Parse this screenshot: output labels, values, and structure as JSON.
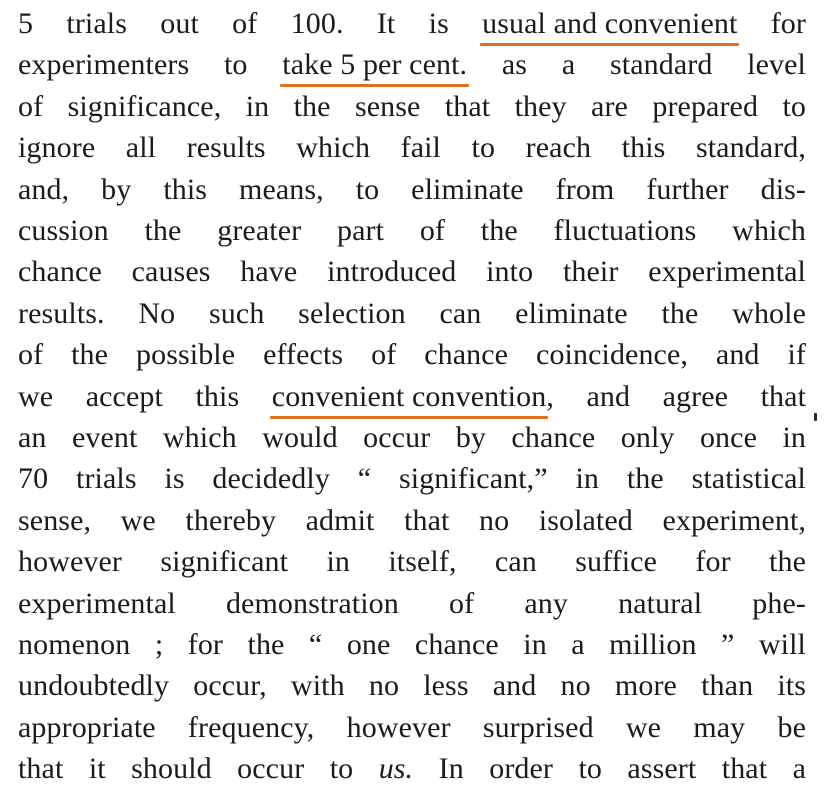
{
  "document": {
    "lines": [
      {
        "before": "5 trials out of 100.  It is ",
        "highlight": "usual and convenient",
        "after": " for"
      },
      {
        "before": "experimenters to ",
        "highlight": "take 5 per cent.",
        "after": " as a standard level"
      },
      {
        "text": "of significance, in the sense that they are prepared to"
      },
      {
        "text": "ignore all results which fail to reach this standard,"
      },
      {
        "text": "and, by this means, to eliminate from further dis-"
      },
      {
        "text": "cussion the greater part of the fluctuations which"
      },
      {
        "text": "chance causes have introduced into their experimental"
      },
      {
        "text": "results.  No such selection can eliminate the whole"
      },
      {
        "text": "of the possible effects of chance coincidence, and if"
      },
      {
        "before": "we accept this ",
        "highlight": "convenient convention",
        "after": ", and agree that"
      },
      {
        "text": "an event which would occur by chance only once in"
      },
      {
        "text": "70 trials is decidedly “ significant,” in the statistical"
      },
      {
        "text": "sense, we thereby admit that no isolated experiment,"
      },
      {
        "text": "however significant in itself, can suffice for the"
      },
      {
        "text": "experimental demonstration of any natural phe-"
      },
      {
        "text": "nomenon ;  for the “ one chance in a million ” will"
      },
      {
        "text": "undoubtedly occur, with no less and no more than its"
      },
      {
        "text": "appropriate frequency, however surprised we may be"
      },
      {
        "before": "that it should occur to ",
        "italic": "us.",
        "after": "  In order to assert that a"
      }
    ]
  },
  "colors": {
    "ink": "#1b1b1b",
    "highlight_underline": "#e06f1f",
    "paper": "#ffffff"
  }
}
